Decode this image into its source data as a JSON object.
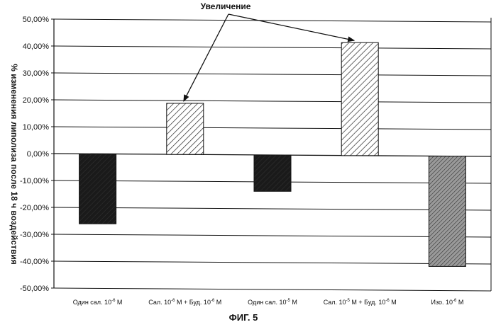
{
  "chart_data": {
    "type": "bar",
    "title": "",
    "ylabel": "% изменения липолиза после 18 ч воздействия",
    "xlabel": "",
    "ylim": [
      -50,
      50
    ],
    "y_ticks": [
      50,
      40,
      30,
      20,
      10,
      0,
      -10,
      -20,
      -30,
      -40,
      -50
    ],
    "y_tick_labels": [
      "50,00%",
      "40,00%",
      "30,00%",
      "20,00%",
      "10,00%",
      "0,00%",
      "-10,00%",
      "-20,00%",
      "-30,00%",
      "-40,00%",
      "-50,00%"
    ],
    "grid": true,
    "categories": [
      {
        "pre": "Один сал. 10",
        "sup": "-6",
        "post": " М"
      },
      {
        "pre": "Сал. 10",
        "sup": "-6",
        "post": " М + Буд. 10",
        "sup2": "-6",
        "post2": " М"
      },
      {
        "pre": "Один сал. 10",
        "sup": "-5",
        "post": " М"
      },
      {
        "pre": "Сал. 10",
        "sup": "-5",
        "post": " М + Буд. 10",
        "sup2": "-6",
        "post2": " М"
      },
      {
        "pre": "Изо. 10",
        "sup": "-6",
        "post": " М"
      }
    ],
    "values": [
      -26,
      19,
      -13.5,
      42,
      -41
    ],
    "fills": [
      "dark",
      "hatch-light",
      "dark",
      "hatch-light",
      "hatch-grey"
    ],
    "annotation": {
      "text": "Увеличение",
      "points_to_categories": [
        1,
        3
      ]
    }
  },
  "caption": "ФИГ. 5",
  "colors": {
    "ink": "#111111",
    "dark_fill": "#1a1a1a",
    "hatch_grey_fill": "#8a8a8a",
    "background": "#ffffff"
  }
}
